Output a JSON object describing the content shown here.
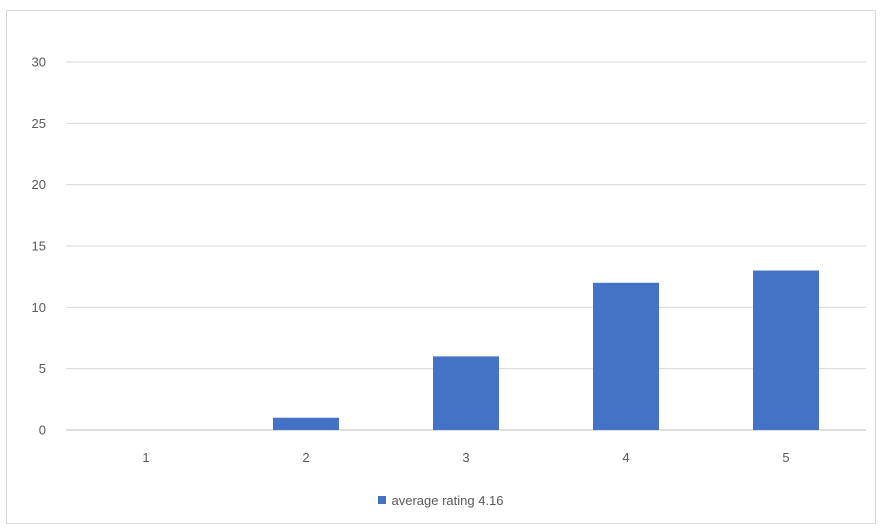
{
  "chart_data": {
    "type": "bar",
    "title": "",
    "xlabel": "",
    "ylabel": "",
    "categories": [
      "1",
      "2",
      "3",
      "4",
      "5"
    ],
    "series": [
      {
        "name": "average rating 4.16",
        "values": [
          0,
          1,
          6,
          12,
          13
        ]
      }
    ],
    "ylim": [
      0,
      30
    ],
    "yticks": [
      0,
      5,
      10,
      15,
      20,
      25,
      30
    ],
    "grid": true,
    "legend_position": "bottom",
    "colors": {
      "bar": "#4472c4",
      "grid": "#d9d9d9",
      "axis": "#bfbfbf"
    }
  }
}
